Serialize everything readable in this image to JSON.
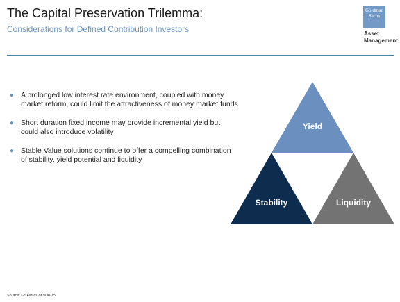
{
  "header": {
    "title": "The Capital Preservation Trilemma:",
    "subtitle": "Considerations for Defined Contribution Investors"
  },
  "logo": {
    "box_line1": "Goldman",
    "box_line2": "Sachs",
    "text_line1": "Asset",
    "text_line2": "Management"
  },
  "bullets": [
    "A prolonged low interest rate environment, coupled with money market reform, could limit the attractiveness of money market funds",
    "Short duration fixed income may provide incremental yield but could also introduce volatility",
    "Stable Value solutions continue to offer a compelling combination of stability, yield potential and liquidity"
  ],
  "trilemma": {
    "top_label": "Yield",
    "left_label": "Stability",
    "right_label": "Liquidity",
    "colors": {
      "yield": "#6b8fbf",
      "stability": "#0e2d4e",
      "liquidity": "#737373"
    }
  },
  "footer": {
    "source": "Source: GSAM as of 9/30/15"
  }
}
